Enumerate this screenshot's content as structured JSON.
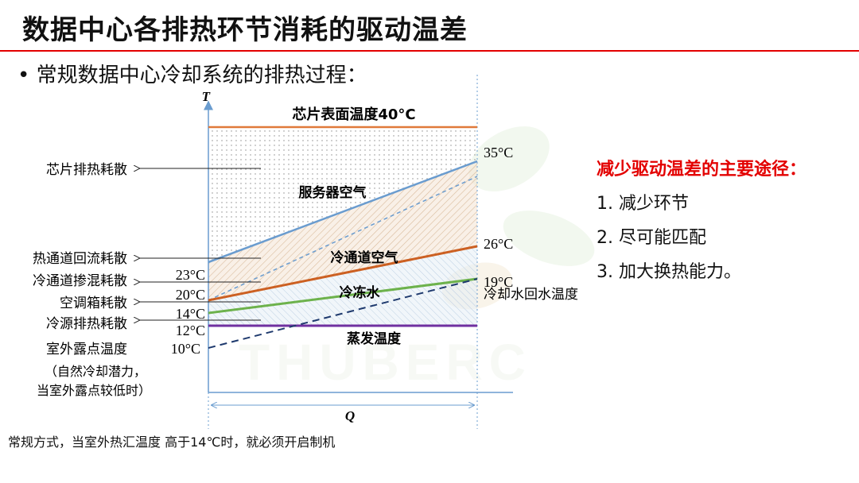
{
  "title": "数据中心各排热环节消耗的驱动温差",
  "bullet": "• 常规数据中心冷却系统的排热过程：",
  "colors": {
    "accent_red": "#e30000",
    "chip_line": "#e07a3a",
    "server_air": "#6a9ccf",
    "cold_aisle": "#cc6022",
    "chilled_water": "#6db24c",
    "evaporate": "#7030a0",
    "cooling_water": "#1f3a6e"
  },
  "diagram": {
    "axis_t": "T",
    "axis_q": "Q",
    "chip_temp": "芯片表面温度40°C",
    "server_air": "服务器空气",
    "cold_aisle_air": "冷通道空气",
    "chilled_water": "冷冻水",
    "evaporate_temp": "蒸发温度",
    "cooling_return": "冷却水回水温度",
    "t35": "35°C",
    "t26": "26°C",
    "t19": "19°C",
    "t23": "23°C",
    "t20": "20°C",
    "t14": "14°C",
    "t12": "12°C",
    "t10": "10°C",
    "left_labels": {
      "chip": "芯片排热耗散",
      "hot_aisle": "热通道回流耗散",
      "cold_aisle": "冷通道掺混耗散",
      "ahu": "空调箱耗散",
      "source": "冷源排热耗散",
      "dew": "室外露点温度",
      "dew_note1": "（自然冷却潜力，",
      "dew_note2": "当室外露点较低时）"
    }
  },
  "right": {
    "heading": "减少驱动温差的主要途径：",
    "items": [
      "1. 减少环节",
      "2. 尽可能匹配",
      "3. 加大换热能力。"
    ]
  },
  "footnote": "常规方式，当室外热汇温度 高于14℃时，就必须开启制机"
}
